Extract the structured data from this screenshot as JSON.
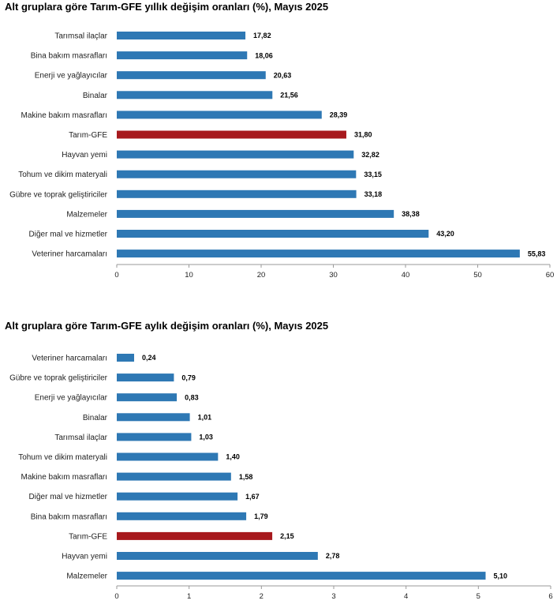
{
  "colors": {
    "bar": "#2e78b4",
    "highlight": "#a7191d",
    "axis": "#9a9a9a"
  },
  "chart_data": [
    {
      "type": "bar",
      "orientation": "horizontal",
      "title": "Alt gruplara göre Tarım-GFE yıllık değişim oranları (%), Mayıs 2025",
      "categories": [
        "Tarımsal ilaçlar",
        "Bina bakım masrafları",
        "Enerji  ve yağlayıcılar",
        "Binalar",
        "Makine bakım masrafları",
        "Tarım-GFE",
        "Hayvan yemi",
        "Tohum ve dikim materyali",
        "Gübre ve toprak geliştiriciler",
        "Malzemeler",
        "Diğer mal ve hizmetler",
        "Veteriner harcamaları"
      ],
      "values": [
        17.82,
        18.06,
        20.63,
        21.56,
        28.39,
        31.8,
        32.82,
        33.15,
        33.18,
        38.38,
        43.2,
        55.83
      ],
      "value_labels": [
        "17,82",
        "18,06",
        "20,63",
        "21,56",
        "28,39",
        "31,80",
        "32,82",
        "33,15",
        "33,18",
        "38,38",
        "43,20",
        "55,83"
      ],
      "highlight": "Tarım-GFE",
      "xlim": [
        0,
        60
      ],
      "xticks": [
        0,
        10,
        20,
        30,
        40,
        50,
        60
      ],
      "xtick_labels": [
        "0",
        "10",
        "20",
        "30",
        "40",
        "50",
        "60"
      ],
      "grid": false,
      "legend": "none"
    },
    {
      "type": "bar",
      "orientation": "horizontal",
      "title": "Alt gruplara göre Tarım-GFE aylık değişim oranları (%), Mayıs 2025",
      "categories": [
        "Veteriner harcamaları",
        "Gübre ve toprak geliştiriciler",
        "Enerji  ve yağlayıcılar",
        "Binalar",
        "Tarımsal ilaçlar",
        "Tohum ve dikim materyali",
        "Makine bakım masrafları",
        "Diğer mal ve hizmetler",
        "Bina bakım masrafları",
        "Tarım-GFE",
        "Hayvan yemi",
        "Malzemeler"
      ],
      "values": [
        0.24,
        0.79,
        0.83,
        1.01,
        1.03,
        1.4,
        1.58,
        1.67,
        1.79,
        2.15,
        2.78,
        5.1
      ],
      "value_labels": [
        "0,24",
        "0,79",
        "0,83",
        "1,01",
        "1,03",
        "1,40",
        "1,58",
        "1,67",
        "1,79",
        "2,15",
        "2,78",
        "5,10"
      ],
      "highlight": "Tarım-GFE",
      "xlim": [
        0,
        6
      ],
      "xticks": [
        0,
        1,
        2,
        3,
        4,
        5,
        6
      ],
      "xtick_labels": [
        "0",
        "1",
        "2",
        "3",
        "4",
        "5",
        "6"
      ],
      "grid": false,
      "legend": "none"
    }
  ]
}
